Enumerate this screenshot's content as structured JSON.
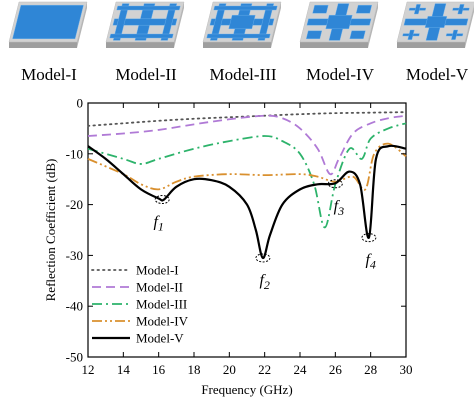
{
  "models": [
    {
      "label": "Model-I",
      "pattern": "plain"
    },
    {
      "label": "Model-II",
      "pattern": "grid"
    },
    {
      "label": "Model-III",
      "pattern": "grid-squares"
    },
    {
      "label": "Model-IV",
      "pattern": "cross-squares"
    },
    {
      "label": "Model-V",
      "pattern": "fractal-cross"
    }
  ],
  "colors": {
    "patch": "#2f86d6",
    "patch_light": "#6fb3ee",
    "substrate": "#d2d2d2",
    "substrate_edge": "#9e9e9e"
  },
  "chart_data": {
    "type": "line",
    "xlabel": "Frequency (GHz)",
    "ylabel": "Reflection Coefficient (dB)",
    "xlim": [
      12,
      30
    ],
    "ylim": [
      -50,
      0
    ],
    "xticks": [
      12,
      14,
      16,
      18,
      20,
      22,
      24,
      26,
      28,
      30
    ],
    "yticks": [
      0,
      -10,
      -20,
      -30,
      -40,
      -50
    ],
    "legend_position": "bottom-left",
    "grid": false,
    "series": [
      {
        "name": "Model-I",
        "color": "#555555",
        "dash": "dotted",
        "x": [
          12,
          14,
          16,
          18,
          20,
          22,
          24,
          26,
          28,
          30
        ],
        "y": [
          -4.5,
          -4.0,
          -3.5,
          -3.1,
          -2.8,
          -2.5,
          -2.2,
          -2.0,
          -1.9,
          -1.8
        ]
      },
      {
        "name": "Model-II",
        "color": "#b07ad6",
        "dash": "dashed",
        "x": [
          12,
          14,
          16,
          18,
          20,
          22,
          23,
          24,
          25,
          25.7,
          26.2,
          27,
          28,
          29,
          30
        ],
        "y": [
          -6.5,
          -6.0,
          -5.3,
          -4.2,
          -3.2,
          -2.5,
          -3.0,
          -5.0,
          -9.0,
          -14.0,
          -11.0,
          -6.0,
          -4.0,
          -3.0,
          -2.5
        ]
      },
      {
        "name": "Model-III",
        "color": "#2db36b",
        "dash": "dashdot",
        "x": [
          12,
          14,
          15,
          16,
          18,
          20,
          22,
          23,
          24,
          24.8,
          25.4,
          26,
          26.8,
          27.5,
          28,
          29,
          30
        ],
        "y": [
          -9.0,
          -11.0,
          -12.0,
          -11.0,
          -9.0,
          -7.5,
          -6.5,
          -7.5,
          -10.0,
          -16.0,
          -24.5,
          -16.0,
          -9.0,
          -11.0,
          -7.0,
          -5.0,
          -4.0
        ]
      },
      {
        "name": "Model-IV",
        "color": "#d9902f",
        "dash": "dashdotdot",
        "x": [
          12,
          14,
          15,
          16,
          17,
          18,
          20,
          22,
          24,
          25,
          26,
          27,
          27.7,
          28.2,
          29,
          30
        ],
        "y": [
          -11.0,
          -14.0,
          -16.0,
          -17.0,
          -15.5,
          -14.5,
          -14.0,
          -14.2,
          -14.0,
          -14.5,
          -15.5,
          -14.5,
          -17.0,
          -10.0,
          -8.0,
          -10.5
        ]
      },
      {
        "name": "Model-V",
        "color": "#000000",
        "dash": "solid",
        "x": [
          12,
          13,
          14,
          15,
          16,
          16.3,
          17,
          18,
          19,
          20,
          21,
          21.5,
          21.9,
          22.3,
          23,
          24,
          25,
          26,
          26.8,
          27.4,
          27.9,
          28.3,
          29,
          30
        ],
        "y": [
          -8.5,
          -11.0,
          -14.0,
          -17.0,
          -18.8,
          -19.0,
          -16.5,
          -15.0,
          -15.2,
          -16.5,
          -20.0,
          -25.0,
          -30.5,
          -26.0,
          -20.0,
          -17.0,
          -16.0,
          -15.8,
          -13.5,
          -16.0,
          -26.5,
          -11.0,
          -8.5,
          -9.0
        ]
      }
    ],
    "annotations": [
      {
        "text": "f",
        "sub": "1",
        "x": 16.2,
        "y": -19.0,
        "label_x": 16.0,
        "label_y": -23.5
      },
      {
        "text": "f",
        "sub": "2",
        "x": 21.9,
        "y": -30.5,
        "label_x": 22.0,
        "label_y": -35.0
      },
      {
        "text": "f",
        "sub": "3",
        "x": 26.0,
        "y": -15.9,
        "label_x": 26.2,
        "label_y": -20.5
      },
      {
        "text": "f",
        "sub": "4",
        "x": 27.9,
        "y": -26.5,
        "label_x": 28.0,
        "label_y": -31.0
      }
    ]
  }
}
